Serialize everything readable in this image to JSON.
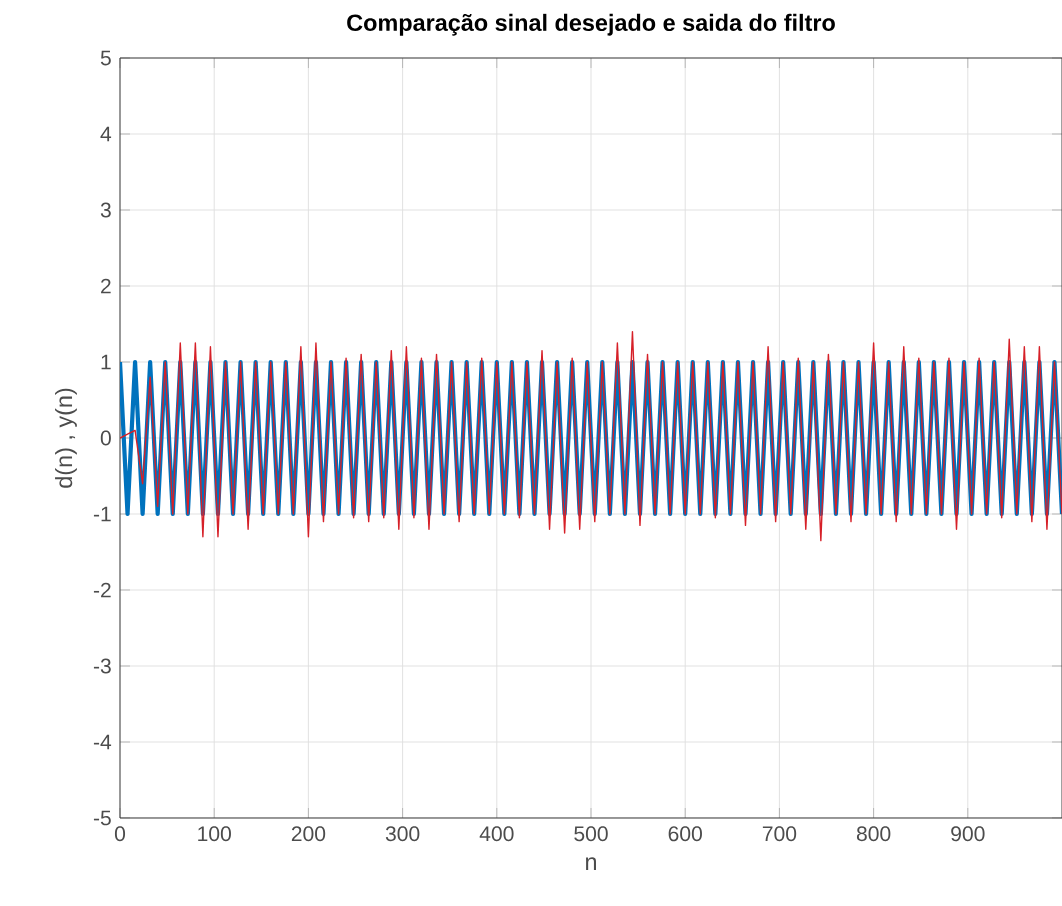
{
  "chart_data": {
    "type": "line",
    "title": "Comparação sinal desejado e saida do filtro",
    "xlabel": "n",
    "ylabel": "d(n)  , y(n)",
    "x": [
      0,
      8,
      16,
      24,
      32,
      40,
      48,
      56,
      64,
      72,
      80,
      88,
      96,
      104,
      112,
      120,
      128,
      136,
      144,
      152,
      160,
      168,
      176,
      184,
      192,
      200,
      208,
      216,
      224,
      232,
      240,
      248,
      256,
      264,
      272,
      280,
      288,
      296,
      304,
      312,
      320,
      328,
      336,
      344,
      352,
      360,
      368,
      376,
      384,
      392,
      400,
      408,
      416,
      424,
      432,
      440,
      448,
      456,
      464,
      472,
      480,
      488,
      496,
      504,
      512,
      520,
      528,
      536,
      544,
      552,
      560,
      568,
      576,
      584,
      592,
      600,
      608,
      616,
      624,
      632,
      640,
      648,
      656,
      664,
      672,
      680,
      688,
      696,
      704,
      712,
      720,
      728,
      736,
      744,
      752,
      760,
      768,
      776,
      784,
      792,
      800,
      808,
      816,
      824,
      832,
      840,
      848,
      856,
      864,
      872,
      880,
      888,
      896,
      904,
      912,
      920,
      928,
      936,
      944,
      952,
      960,
      968,
      976,
      984,
      992,
      1000
    ],
    "series": [
      {
        "color": "#0072bd",
        "values": [
          1,
          -1,
          1,
          -1,
          1,
          -1,
          1,
          -1,
          1,
          -1,
          1,
          -1,
          1,
          -1,
          1,
          -1,
          1,
          -1,
          1,
          -1,
          1,
          -1,
          1,
          -1,
          1,
          -1,
          1,
          -1,
          1,
          -1,
          1,
          -1,
          1,
          -1,
          1,
          -1,
          1,
          -1,
          1,
          -1,
          1,
          -1,
          1,
          -1,
          1,
          -1,
          1,
          -1,
          1,
          -1,
          1,
          -1,
          1,
          -1,
          1,
          -1,
          1,
          -1,
          1,
          -1,
          1,
          -1,
          1,
          -1,
          1,
          -1,
          1,
          -1,
          1,
          -1,
          1,
          -1,
          1,
          -1,
          1,
          -1,
          1,
          -1,
          1,
          -1,
          1,
          -1,
          1,
          -1,
          1,
          -1,
          1,
          -1,
          1,
          -1,
          1,
          -1,
          1,
          -1,
          1,
          -1,
          1,
          -1,
          1,
          -1,
          1,
          -1,
          1,
          -1,
          1,
          -1,
          1,
          -1,
          1,
          -1,
          1,
          -1,
          1,
          -1,
          1,
          -1,
          1,
          -1,
          1,
          -1,
          1,
          -1,
          1,
          -1,
          1,
          -1
        ]
      },
      {
        "color": "#d62028",
        "values": [
          0,
          0.05,
          0.1,
          -0.6,
          0.8,
          -0.9,
          1.0,
          -1.0,
          1.25,
          -1.0,
          1.25,
          -1.3,
          1.2,
          -1.3,
          1.0,
          -1.0,
          1.0,
          -1.2,
          1.0,
          -1.0,
          1.0,
          -1.0,
          1.0,
          -1.0,
          1.2,
          -1.3,
          1.25,
          -1.1,
          1.0,
          -1.0,
          1.05,
          -1.05,
          1.1,
          -1.1,
          1.0,
          -1.05,
          1.15,
          -1.2,
          1.2,
          -1.05,
          1.05,
          -1.2,
          1.1,
          -1.0,
          1.0,
          -1.1,
          1.0,
          -1.0,
          1.05,
          -1.0,
          1.0,
          -1.0,
          1.0,
          -1.05,
          1.0,
          -1.0,
          1.15,
          -1.2,
          1.0,
          -1.25,
          1.05,
          -1.2,
          1.0,
          -1.1,
          1.0,
          -1.0,
          1.25,
          -1.0,
          1.4,
          -1.15,
          1.1,
          -1.0,
          1.0,
          -1.0,
          1.0,
          -1.0,
          1.0,
          -1.0,
          1.0,
          -1.05,
          1.0,
          -1.0,
          1.0,
          -1.15,
          1.0,
          -1.0,
          1.2,
          -1.1,
          1.0,
          -1.0,
          1.05,
          -1.2,
          1.0,
          -1.35,
          1.1,
          -1.0,
          1.0,
          -1.1,
          1.0,
          -1.0,
          1.25,
          -1.0,
          1.0,
          -1.1,
          1.2,
          -1.0,
          1.05,
          -1.0,
          1.0,
          -1.0,
          1.05,
          -1.2,
          1.0,
          -1.0,
          1.05,
          -1.0,
          1.0,
          -1.05,
          1.3,
          -1.0,
          1.2,
          -1.1,
          1.2,
          -1.2,
          1.0,
          -1.0
        ]
      }
    ],
    "xlim": [
      0,
      1000
    ],
    "xticks": [
      0,
      100,
      200,
      300,
      400,
      500,
      600,
      700,
      800,
      900
    ],
    "ylim": [
      -5,
      5
    ],
    "yticks": [
      -5,
      -4,
      -3,
      -2,
      -1,
      0,
      1,
      2,
      3,
      4,
      5
    ],
    "grid": true
  }
}
